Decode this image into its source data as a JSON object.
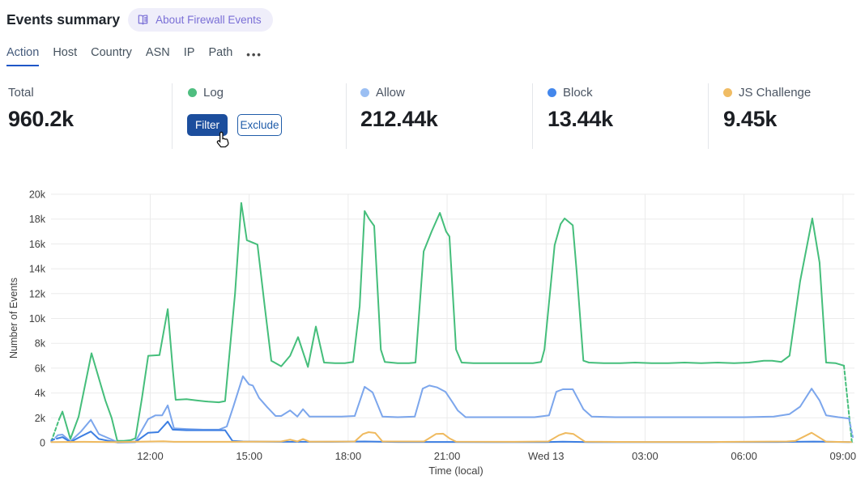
{
  "header": {
    "title": "Events summary",
    "badge_label": "About Firewall Events"
  },
  "tabs": {
    "items": [
      {
        "label": "Action",
        "active": true
      },
      {
        "label": "Host",
        "active": false
      },
      {
        "label": "Country",
        "active": false
      },
      {
        "label": "ASN",
        "active": false
      },
      {
        "label": "IP",
        "active": false
      },
      {
        "label": "Path",
        "active": false
      }
    ],
    "more_label": "•••"
  },
  "stats": {
    "total": {
      "label": "Total",
      "value": "960.2k"
    },
    "items": [
      {
        "label": "Log",
        "color": "#4fbe80",
        "hovered": true,
        "actions": {
          "filter": "Filter",
          "exclude": "Exclude"
        }
      },
      {
        "label": "Allow",
        "color": "#9bbff3",
        "value": "212.44k"
      },
      {
        "label": "Block",
        "color": "#4387ec",
        "value": "13.44k"
      },
      {
        "label": "JS Challenge",
        "color": "#f0bc64",
        "value": "9.45k"
      }
    ]
  },
  "colors": {
    "filter_button": "#1c4e9d",
    "exclude_button": "#1f5ca9",
    "tab_underline": "#1e56c8",
    "badge_bg": "#efeefa",
    "badge_text": "#7a6fd6",
    "gridline": "#ebebeb"
  },
  "chart_data": {
    "type": "line",
    "xlabel": "Time (local)",
    "ylabel": "Number of Events",
    "ylim": [
      0,
      20000
    ],
    "grid": true,
    "legend_position": "stats-row-above",
    "values_unit": "thousands of events",
    "x_unit": "hours (0 = chart left edge, ticks every 3h)",
    "y_ticks": [
      {
        "v": 0,
        "label": "0"
      },
      {
        "v": 2,
        "label": "2k"
      },
      {
        "v": 4,
        "label": "4k"
      },
      {
        "v": 6,
        "label": "6k"
      },
      {
        "v": 8,
        "label": "8k"
      },
      {
        "v": 10,
        "label": "10k"
      },
      {
        "v": 12,
        "label": "12k"
      },
      {
        "v": 14,
        "label": "14k"
      },
      {
        "v": 16,
        "label": "16k"
      },
      {
        "v": 18,
        "label": "18k"
      },
      {
        "v": 20,
        "label": "20k"
      }
    ],
    "x_ticks": [
      {
        "t": 3,
        "label": "12:00"
      },
      {
        "t": 6,
        "label": "15:00"
      },
      {
        "t": 9,
        "label": "18:00"
      },
      {
        "t": 12,
        "label": "21:00"
      },
      {
        "t": 15,
        "label": "Wed 13"
      },
      {
        "t": 18,
        "label": "03:00"
      },
      {
        "t": 21,
        "label": "06:00"
      },
      {
        "t": 24,
        "label": "09:00"
      }
    ],
    "series": [
      {
        "name": "Log",
        "color": "#45be7b",
        "dashed_head": 1,
        "dashed_tail": 1,
        "points": [
          [
            0,
            0.1
          ],
          [
            0.24,
            1.9
          ],
          [
            0.34,
            2.5
          ],
          [
            0.46,
            1.4
          ],
          [
            0.58,
            0.3
          ],
          [
            0.83,
            2.1
          ],
          [
            1.22,
            7.2
          ],
          [
            1.64,
            3.4
          ],
          [
            1.83,
            2.0
          ],
          [
            2.0,
            0.15
          ],
          [
            2.2,
            0.15
          ],
          [
            2.4,
            0.2
          ],
          [
            2.55,
            0.35
          ],
          [
            2.75,
            3.6
          ],
          [
            2.94,
            7.0
          ],
          [
            3.28,
            7.05
          ],
          [
            3.53,
            10.75
          ],
          [
            3.68,
            6.0
          ],
          [
            3.77,
            3.45
          ],
          [
            4.1,
            3.5
          ],
          [
            4.4,
            3.4
          ],
          [
            4.76,
            3.3
          ],
          [
            5.08,
            3.25
          ],
          [
            5.27,
            3.35
          ],
          [
            5.57,
            12.0
          ],
          [
            5.76,
            19.3
          ],
          [
            5.93,
            16.3
          ],
          [
            6.25,
            15.95
          ],
          [
            6.47,
            11.0
          ],
          [
            6.67,
            6.6
          ],
          [
            6.97,
            6.15
          ],
          [
            7.24,
            7.0
          ],
          [
            7.48,
            8.5
          ],
          [
            7.78,
            6.1
          ],
          [
            8.02,
            9.35
          ],
          [
            8.27,
            6.45
          ],
          [
            8.6,
            6.4
          ],
          [
            8.9,
            6.4
          ],
          [
            9.15,
            6.5
          ],
          [
            9.35,
            11.0
          ],
          [
            9.5,
            18.65
          ],
          [
            9.64,
            18.0
          ],
          [
            9.79,
            17.45
          ],
          [
            9.99,
            7.5
          ],
          [
            10.11,
            6.5
          ],
          [
            10.5,
            6.4
          ],
          [
            10.84,
            6.4
          ],
          [
            11.04,
            6.45
          ],
          [
            11.29,
            15.4
          ],
          [
            11.53,
            17.0
          ],
          [
            11.78,
            18.5
          ],
          [
            11.97,
            17.0
          ],
          [
            12.07,
            16.6
          ],
          [
            12.27,
            7.5
          ],
          [
            12.44,
            6.45
          ],
          [
            12.8,
            6.4
          ],
          [
            13.2,
            6.4
          ],
          [
            13.6,
            6.4
          ],
          [
            14.0,
            6.4
          ],
          [
            14.3,
            6.4
          ],
          [
            14.6,
            6.4
          ],
          [
            14.85,
            6.5
          ],
          [
            14.95,
            7.5
          ],
          [
            15.26,
            15.9
          ],
          [
            15.44,
            17.6
          ],
          [
            15.56,
            18.05
          ],
          [
            15.81,
            17.5
          ],
          [
            15.93,
            13.7
          ],
          [
            16.13,
            6.6
          ],
          [
            16.3,
            6.45
          ],
          [
            16.75,
            6.4
          ],
          [
            17.25,
            6.4
          ],
          [
            17.7,
            6.45
          ],
          [
            18.2,
            6.4
          ],
          [
            18.7,
            6.4
          ],
          [
            19.2,
            6.45
          ],
          [
            19.7,
            6.4
          ],
          [
            20.2,
            6.45
          ],
          [
            20.7,
            6.4
          ],
          [
            21.15,
            6.45
          ],
          [
            21.6,
            6.6
          ],
          [
            21.85,
            6.6
          ],
          [
            22.13,
            6.5
          ],
          [
            22.38,
            7.0
          ],
          [
            22.7,
            13.0
          ],
          [
            23.07,
            18.05
          ],
          [
            23.29,
            14.5
          ],
          [
            23.49,
            6.45
          ],
          [
            23.78,
            6.4
          ],
          [
            24.03,
            6.2
          ],
          [
            24.27,
            0.05
          ]
        ]
      },
      {
        "name": "Allow",
        "color": "#7ca6ec",
        "dashed_head": 1,
        "dashed_tail": 1,
        "points": [
          [
            0,
            0.1
          ],
          [
            0.2,
            0.6
          ],
          [
            0.34,
            0.65
          ],
          [
            0.58,
            0.1
          ],
          [
            0.9,
            0.9
          ],
          [
            1.2,
            1.85
          ],
          [
            1.44,
            0.7
          ],
          [
            2.0,
            0.05
          ],
          [
            2.55,
            0.1
          ],
          [
            2.94,
            1.9
          ],
          [
            3.16,
            2.2
          ],
          [
            3.36,
            2.2
          ],
          [
            3.53,
            3.0
          ],
          [
            3.72,
            1.15
          ],
          [
            4.1,
            1.1
          ],
          [
            4.6,
            1.05
          ],
          [
            5.08,
            1.05
          ],
          [
            5.32,
            1.3
          ],
          [
            5.52,
            2.9
          ],
          [
            5.81,
            5.35
          ],
          [
            5.99,
            4.7
          ],
          [
            6.11,
            4.6
          ],
          [
            6.3,
            3.6
          ],
          [
            6.55,
            2.85
          ],
          [
            6.8,
            2.15
          ],
          [
            6.97,
            2.15
          ],
          [
            7.24,
            2.6
          ],
          [
            7.46,
            2.1
          ],
          [
            7.63,
            2.7
          ],
          [
            7.83,
            2.1
          ],
          [
            8.3,
            2.1
          ],
          [
            8.8,
            2.1
          ],
          [
            9.2,
            2.15
          ],
          [
            9.5,
            4.5
          ],
          [
            9.74,
            4.05
          ],
          [
            10.04,
            2.1
          ],
          [
            10.5,
            2.05
          ],
          [
            11.02,
            2.1
          ],
          [
            11.26,
            4.35
          ],
          [
            11.46,
            4.6
          ],
          [
            11.7,
            4.45
          ],
          [
            11.95,
            4.1
          ],
          [
            12.15,
            3.3
          ],
          [
            12.32,
            2.6
          ],
          [
            12.56,
            2.05
          ],
          [
            13.2,
            2.05
          ],
          [
            13.9,
            2.05
          ],
          [
            14.65,
            2.05
          ],
          [
            15.09,
            2.2
          ],
          [
            15.31,
            4.1
          ],
          [
            15.51,
            4.3
          ],
          [
            15.81,
            4.3
          ],
          [
            16.01,
            3.3
          ],
          [
            16.13,
            2.7
          ],
          [
            16.38,
            2.1
          ],
          [
            17.1,
            2.05
          ],
          [
            18.1,
            2.05
          ],
          [
            19.1,
            2.05
          ],
          [
            20.0,
            2.05
          ],
          [
            21.0,
            2.05
          ],
          [
            21.9,
            2.1
          ],
          [
            22.38,
            2.3
          ],
          [
            22.7,
            2.9
          ],
          [
            23.05,
            4.35
          ],
          [
            23.29,
            3.4
          ],
          [
            23.49,
            2.2
          ],
          [
            23.86,
            2.05
          ],
          [
            24.18,
            1.95
          ],
          [
            24.3,
            0.45
          ]
        ]
      },
      {
        "name": "Block",
        "color": "#3c7ee2",
        "dashed_head": 1,
        "dashed_tail": 0,
        "points": [
          [
            0,
            0.2
          ],
          [
            0.2,
            0.35
          ],
          [
            0.34,
            0.45
          ],
          [
            0.58,
            0.05
          ],
          [
            0.9,
            0.5
          ],
          [
            1.2,
            0.9
          ],
          [
            1.44,
            0.3
          ],
          [
            2.0,
            0.02
          ],
          [
            2.55,
            0.05
          ],
          [
            2.94,
            0.8
          ],
          [
            3.24,
            0.85
          ],
          [
            3.53,
            1.7
          ],
          [
            3.68,
            1.05
          ],
          [
            4.1,
            1.0
          ],
          [
            4.6,
            1.0
          ],
          [
            5.08,
            1.0
          ],
          [
            5.27,
            1.0
          ],
          [
            5.49,
            0.15
          ],
          [
            5.81,
            0.1
          ],
          [
            7.0,
            0.07
          ],
          [
            8.5,
            0.07
          ],
          [
            9.5,
            0.1
          ],
          [
            10.5,
            0.06
          ],
          [
            12.0,
            0.06
          ],
          [
            13.5,
            0.05
          ],
          [
            15.0,
            0.05
          ],
          [
            15.5,
            0.08
          ],
          [
            16.3,
            0.05
          ],
          [
            18.0,
            0.05
          ],
          [
            20.0,
            0.05
          ],
          [
            22.0,
            0.06
          ],
          [
            23.1,
            0.09
          ],
          [
            24.2,
            0.05
          ]
        ]
      },
      {
        "name": "JS Challenge",
        "color": "#efba5f",
        "dashed_head": 0,
        "dashed_tail": 0,
        "points": [
          [
            0,
            0.05
          ],
          [
            1.0,
            0.07
          ],
          [
            2.0,
            0.05
          ],
          [
            3.4,
            0.12
          ],
          [
            3.72,
            0.07
          ],
          [
            5.5,
            0.07
          ],
          [
            6.97,
            0.1
          ],
          [
            7.24,
            0.25
          ],
          [
            7.46,
            0.1
          ],
          [
            7.63,
            0.3
          ],
          [
            7.83,
            0.08
          ],
          [
            9.2,
            0.1
          ],
          [
            9.45,
            0.7
          ],
          [
            9.62,
            0.85
          ],
          [
            9.82,
            0.78
          ],
          [
            10.04,
            0.1
          ],
          [
            11.3,
            0.1
          ],
          [
            11.66,
            0.7
          ],
          [
            11.88,
            0.72
          ],
          [
            12.07,
            0.35
          ],
          [
            12.27,
            0.08
          ],
          [
            14.0,
            0.07
          ],
          [
            15.07,
            0.1
          ],
          [
            15.39,
            0.6
          ],
          [
            15.59,
            0.78
          ],
          [
            15.83,
            0.7
          ],
          [
            16.18,
            0.08
          ],
          [
            18.0,
            0.06
          ],
          [
            20.0,
            0.06
          ],
          [
            22.3,
            0.1
          ],
          [
            22.56,
            0.15
          ],
          [
            23.05,
            0.8
          ],
          [
            23.49,
            0.08
          ],
          [
            24.25,
            0.05
          ]
        ]
      }
    ]
  }
}
